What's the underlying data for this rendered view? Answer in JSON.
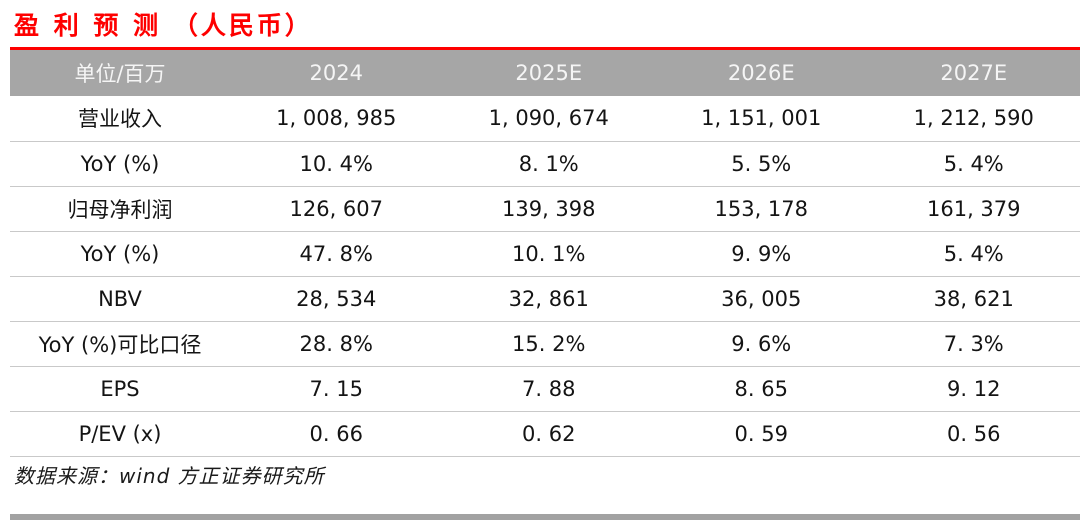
{
  "title": "盈 利 预 测 （人民币）",
  "colors": {
    "accent_red": "#FE0000",
    "header_gray": "#A6A6A6",
    "separator_gray": "#C9C9C9"
  },
  "table": {
    "unit_header": "单位/百万",
    "columns": [
      "2024",
      "2025E",
      "2026E",
      "2027E"
    ],
    "rows": [
      {
        "label": "营业收入",
        "values": [
          "1, 008, 985",
          "1, 090, 674",
          "1, 151, 001",
          "1, 212, 590"
        ]
      },
      {
        "label": "YoY (%)",
        "values": [
          "10. 4%",
          "8. 1%",
          "5. 5%",
          "5. 4%"
        ]
      },
      {
        "label": "归母净利润",
        "values": [
          "126, 607",
          "139, 398",
          "153, 178",
          "161, 379"
        ]
      },
      {
        "label": "YoY (%)",
        "values": [
          "47. 8%",
          "10. 1%",
          "9. 9%",
          "5. 4%"
        ]
      },
      {
        "label": "NBV",
        "values": [
          "28, 534",
          "32, 861",
          "36, 005",
          "38, 621"
        ]
      },
      {
        "label": "YoY (%)可比口径",
        "values": [
          "28. 8%",
          "15. 2%",
          "9. 6%",
          "7. 3%"
        ]
      },
      {
        "label": "EPS",
        "values": [
          "7. 15",
          "7. 88",
          "8. 65",
          "9. 12"
        ]
      },
      {
        "label": "P/EV (x)",
        "values": [
          "0. 66",
          "0. 62",
          "0. 59",
          "0. 56"
        ]
      }
    ]
  },
  "footer": {
    "source": "数据来源：wind 方正证券研究所"
  }
}
